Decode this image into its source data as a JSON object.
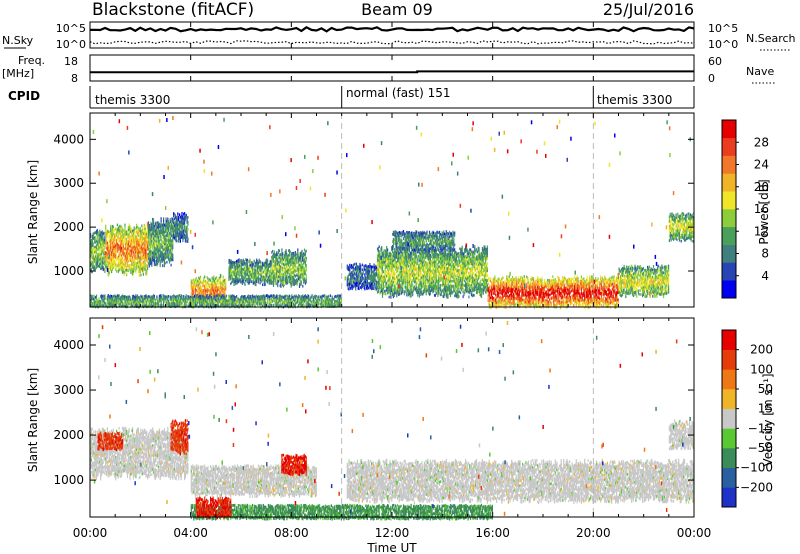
{
  "header": {
    "station": "Blackstone (fitACF)",
    "beam": "Beam 09",
    "date": "25/Jul/2016"
  },
  "chart_data": [
    {
      "type": "line",
      "panel": "noise",
      "ylabel_left": "N.Sky",
      "ylabel_right": "N.Search",
      "ylim_left_ticks": [
        "10^5",
        "10^0"
      ],
      "ylim_right_ticks": [
        "10^5",
        "10^0"
      ],
      "series": [
        {
          "label": "N.Sky",
          "style": "solid",
          "level_fraction": 0.72
        },
        {
          "label": "N.Search",
          "style": "dotted",
          "level_fraction": 0.22
        }
      ]
    },
    {
      "type": "line",
      "panel": "frequency",
      "ylabel_left": "Freq.",
      "ylabel_left_unit": "[MHz]",
      "ylabel_right": "Nave",
      "left_ticks": [
        "18",
        "8"
      ],
      "right_ticks": [
        "60",
        "0"
      ],
      "freq_steps": [
        {
          "x_hour": 0.0,
          "freq_mhz": 10.2
        },
        {
          "x_hour": 13.0,
          "freq_mhz": 10.2
        },
        {
          "x_hour": 13.0,
          "freq_mhz": 10.8
        },
        {
          "x_hour": 24.0,
          "freq_mhz": 10.8
        }
      ]
    },
    {
      "type": "table",
      "panel": "cpid",
      "label": "CPID",
      "segments": [
        {
          "name": "themis 3300",
          "start_hour": 0,
          "end_hour": 10
        },
        {
          "name": "normal (fast) 151",
          "start_hour": 10,
          "end_hour": 20
        },
        {
          "name": "themis 3300",
          "start_hour": 20,
          "end_hour": 24
        }
      ]
    },
    {
      "type": "heatmap",
      "panel": "power",
      "ylabel": "Slant Range [km]",
      "ylim": [
        180,
        4600
      ],
      "yticks": [
        "4000",
        "3000",
        "2000",
        "1000"
      ],
      "colorbar_label": "Power [dB]",
      "colorbar_ticks": [
        "28",
        "24",
        "20",
        "16",
        "12",
        "8",
        "4"
      ],
      "colorbar_range": [
        0,
        30
      ],
      "colors": [
        "#0000f0",
        "#2845b4",
        "#3f7f7f",
        "#4aa05a",
        "#8ccd3c",
        "#f0e628",
        "#f0b428",
        "#f07828",
        "#ec3c1e",
        "#e60000"
      ],
      "echo_regions": [
        {
          "t0": 0.0,
          "t1": 0.6,
          "r0": 1050,
          "r1": 1900,
          "level": 0.45
        },
        {
          "t0": 0.6,
          "t1": 2.3,
          "r0": 1000,
          "r1": 2000,
          "level": 0.75
        },
        {
          "t0": 2.3,
          "t1": 3.3,
          "r0": 1200,
          "r1": 2150,
          "level": 0.4
        },
        {
          "t0": 3.3,
          "t1": 3.9,
          "r0": 1700,
          "r1": 2300,
          "level": 0.3
        },
        {
          "t0": 4.0,
          "t1": 5.4,
          "r0": 250,
          "r1": 850,
          "level": 0.75
        },
        {
          "t0": 5.5,
          "t1": 7.2,
          "r0": 750,
          "r1": 1250,
          "level": 0.4
        },
        {
          "t0": 7.2,
          "t1": 8.6,
          "r0": 700,
          "r1": 1450,
          "level": 0.45
        },
        {
          "t0": 10.2,
          "t1": 11.4,
          "r0": 650,
          "r1": 1150,
          "level": 0.25
        },
        {
          "t0": 11.4,
          "t1": 15.8,
          "r0": 500,
          "r1": 1500,
          "level": 0.5
        },
        {
          "t0": 15.8,
          "t1": 21.0,
          "r0": 200,
          "r1": 850,
          "level": 0.92
        },
        {
          "t0": 21.0,
          "t1": 23.0,
          "r0": 450,
          "r1": 1100,
          "level": 0.55
        },
        {
          "t0": 23.0,
          "t1": 24.0,
          "r0": 1750,
          "r1": 2300,
          "level": 0.55
        },
        {
          "t0": 0.0,
          "t1": 10.0,
          "r0": 180,
          "r1": 450,
          "level": 0.4
        },
        {
          "t0": 12.0,
          "t1": 14.5,
          "r0": 1500,
          "r1": 1900,
          "level": 0.35
        }
      ]
    },
    {
      "type": "heatmap",
      "panel": "velocity",
      "ylabel": "Slant Range [km]",
      "ylim": [
        180,
        4600
      ],
      "yticks": [
        "4000",
        "3000",
        "2000",
        "1000"
      ],
      "colorbar_label": "Velocity [m s⁻¹]",
      "colorbar_ticks": [
        "200",
        "100",
        "50",
        "15",
        "−15",
        "−50",
        "−100",
        "−200"
      ],
      "colorbar_range": [
        -250,
        250
      ],
      "colors": [
        "#1e32c8",
        "#2a5fa0",
        "#3c8c5a",
        "#5ac832",
        "#c8c8c8",
        "#f0b428",
        "#f07814",
        "#e63c0a",
        "#e60000"
      ],
      "echo_regions": [
        {
          "t0": 0.0,
          "t1": 3.9,
          "r0": 1100,
          "r1": 2100,
          "level": 0.5
        },
        {
          "t0": 0.3,
          "t1": 1.3,
          "r0": 1700,
          "r1": 2050,
          "level": 0.85
        },
        {
          "t0": 3.2,
          "t1": 3.9,
          "r0": 1650,
          "r1": 2300,
          "level": 0.85
        },
        {
          "t0": 4.0,
          "t1": 9.0,
          "r0": 700,
          "r1": 1300,
          "level": 0.5
        },
        {
          "t0": 7.6,
          "t1": 8.6,
          "r0": 1150,
          "r1": 1550,
          "level": 0.9
        },
        {
          "t0": 10.2,
          "t1": 24.0,
          "r0": 550,
          "r1": 1400,
          "level": 0.5
        },
        {
          "t0": 4.0,
          "t1": 16.0,
          "r0": 180,
          "r1": 450,
          "level": 0.3
        },
        {
          "t0": 4.2,
          "t1": 5.6,
          "r0": 200,
          "r1": 600,
          "level": 0.9
        },
        {
          "t0": 23.0,
          "t1": 24.0,
          "r0": 1750,
          "r1": 2300,
          "level": 0.5
        }
      ]
    }
  ],
  "xaxis": {
    "label": "Time UT",
    "ticks": [
      "00:00",
      "04:00",
      "08:00",
      "12:00",
      "16:00",
      "20:00",
      "00:00"
    ]
  }
}
